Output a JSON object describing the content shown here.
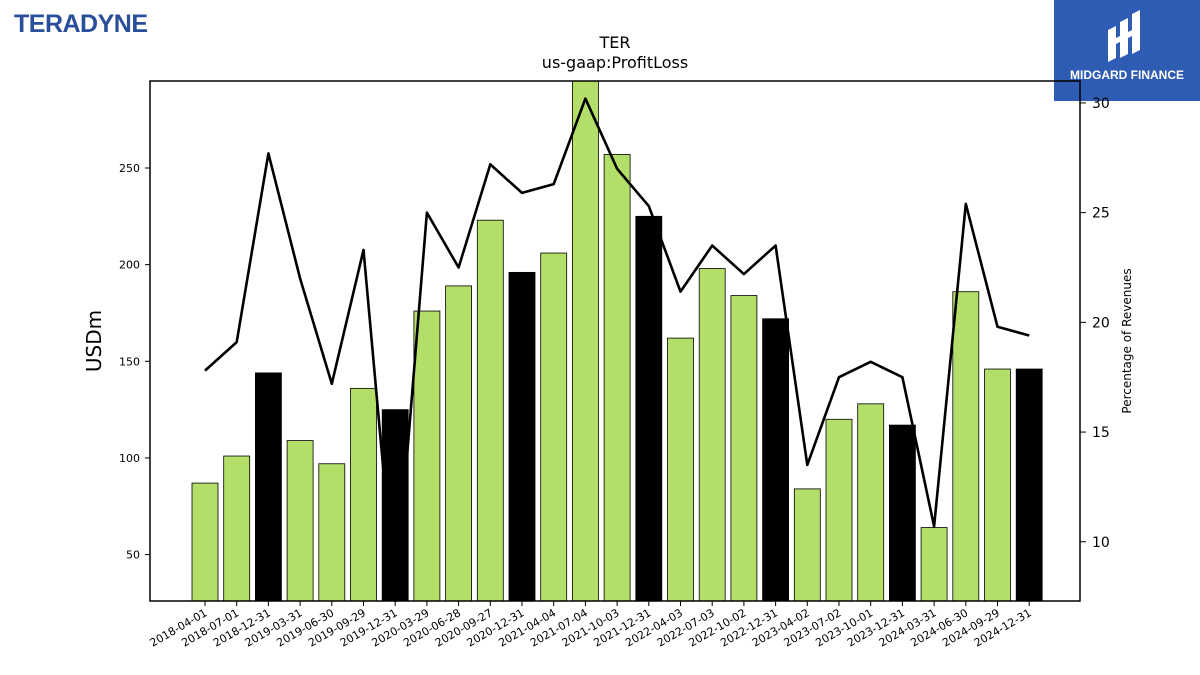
{
  "header": {
    "company_logo": "TERADYNE",
    "sponsor_logo": "MIDGARD FINANCE",
    "sponsor_icon": "midgard-logo-icon"
  },
  "chart_data": {
    "type": "bar",
    "title": "TER",
    "subtitle": "us-gaap:ProfitLoss",
    "ylabel": "USDm",
    "y2label": "Percentage of Revenues",
    "ylim": [
      26,
      295
    ],
    "y2lim": [
      7.3,
      31
    ],
    "yticks": [
      50,
      100,
      150,
      200,
      250
    ],
    "y2ticks": [
      10,
      15,
      20,
      25,
      30
    ],
    "colors": {
      "quarter": "#b3de69",
      "year_end": "#000000",
      "line": "#000000"
    },
    "categories": [
      "2018-04-01",
      "2018-07-01",
      "2018-12-31",
      "2019-03-31",
      "2019-06-30",
      "2019-09-29",
      "2019-12-31",
      "2020-03-29",
      "2020-06-28",
      "2020-09-27",
      "2020-12-31",
      "2021-04-04",
      "2021-07-04",
      "2021-10-03",
      "2021-12-31",
      "2022-04-03",
      "2022-07-03",
      "2022-10-02",
      "2022-12-31",
      "2023-04-02",
      "2023-07-02",
      "2023-10-01",
      "2023-12-31",
      "2024-03-31",
      "2024-06-30",
      "2024-09-29",
      "2024-12-31"
    ],
    "series": [
      {
        "values": [
          87,
          101,
          144,
          109,
          97,
          136,
          125,
          176,
          189,
          223,
          196,
          206,
          297,
          257,
          225,
          162,
          198,
          184,
          172,
          84,
          120,
          128,
          117,
          64,
          186,
          146,
          146
        ],
        "year_end": [
          false,
          false,
          true,
          false,
          false,
          false,
          true,
          false,
          false,
          false,
          true,
          false,
          false,
          false,
          true,
          false,
          false,
          false,
          true,
          false,
          false,
          false,
          true,
          false,
          false,
          false,
          true
        ]
      },
      {
        "type": "line",
        "axis": "right",
        "values": [
          17.8,
          19.1,
          27.7,
          22.0,
          17.2,
          23.3,
          7.3,
          25.0,
          22.5,
          27.2,
          25.9,
          26.3,
          30.2,
          27.0,
          25.3,
          21.4,
          23.5,
          22.2,
          23.5,
          13.5,
          17.5,
          18.2,
          17.5,
          10.7,
          25.4,
          19.8,
          19.4
        ]
      }
    ]
  }
}
